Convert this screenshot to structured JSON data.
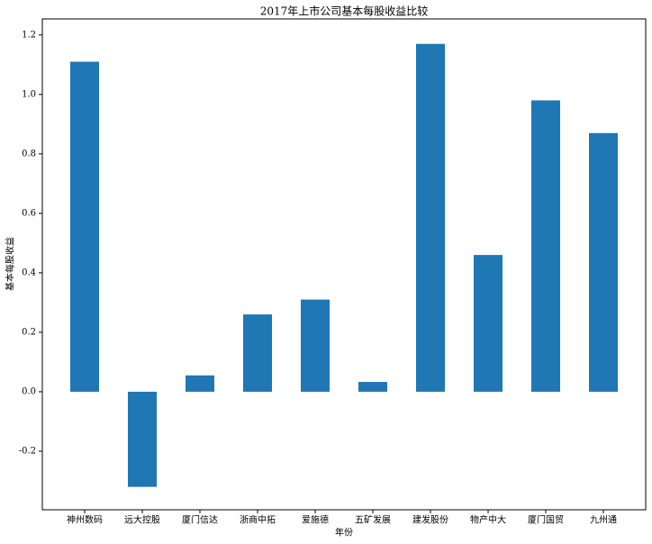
{
  "chart_data": {
    "type": "bar",
    "title": "2017年上市公司基本每股收益比较",
    "x_label": "年份",
    "y_label": "基本每股收益",
    "categories": [
      "神州数码",
      "远大控股",
      "厦门信达",
      "浙商中拓",
      "爱施德",
      "五矿发展",
      "建发股份",
      "物产中大",
      "厦门国贸",
      "九州通"
    ],
    "values": [
      1.11,
      -0.32,
      0.055,
      0.26,
      0.31,
      0.033,
      1.17,
      0.46,
      0.98,
      0.87
    ],
    "color": "#1f77b4",
    "ylim": [
      -0.397,
      1.254
    ],
    "yticks": [
      -0.2,
      {
        "value": 0,
        "label": "0.0"
      },
      0.2,
      0.4,
      0.6,
      0.8,
      {
        "value": 1,
        "label": "1.0"
      },
      1.2
    ],
    "grid": false
  }
}
